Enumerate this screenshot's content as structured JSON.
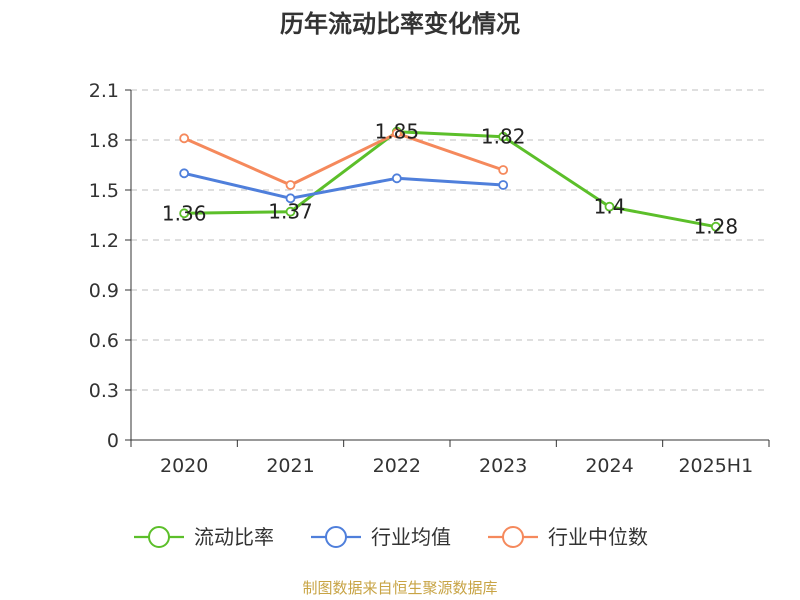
{
  "chart_data": {
    "type": "line",
    "title": "历年流动比率变化情况",
    "categories": [
      "2020",
      "2021",
      "2022",
      "2023",
      "2024",
      "2025H1"
    ],
    "ylim": [
      0,
      2.1
    ],
    "yticks": [
      "0",
      "0.3",
      "0.6",
      "0.9",
      "1.2",
      "1.5",
      "1.8",
      "2.1"
    ],
    "grid": true,
    "legend_position": "bottom",
    "series": [
      {
        "name": "流动比率",
        "color": "#5cbf2a",
        "values": [
          1.36,
          1.37,
          1.85,
          1.82,
          1.4,
          1.28
        ],
        "labels": [
          "1.36",
          "1.37",
          "1.85",
          "1.82",
          "1.4",
          "1.28"
        ]
      },
      {
        "name": "行业均值",
        "color": "#4f7fdb",
        "values": [
          1.6,
          1.45,
          1.57,
          1.53,
          null,
          null
        ]
      },
      {
        "name": "行业中位数",
        "color": "#f5895c",
        "values": [
          1.81,
          1.53,
          1.84,
          1.62,
          null,
          null
        ]
      }
    ],
    "source": "制图数据来自恒生聚源数据库"
  }
}
